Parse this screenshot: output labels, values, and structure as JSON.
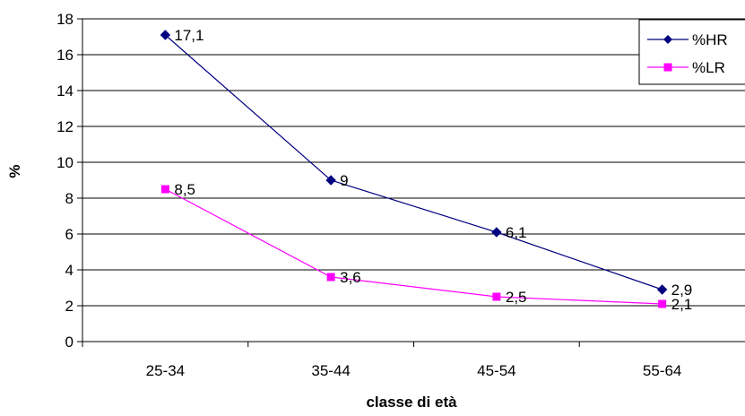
{
  "chart_data": {
    "type": "line",
    "title": "",
    "xlabel": "classe di età",
    "ylabel": "%",
    "categories": [
      "25-34",
      "35-44",
      "45-54",
      "55-64"
    ],
    "ylim": [
      0,
      18
    ],
    "y_ticks": [
      0,
      2,
      4,
      6,
      8,
      10,
      12,
      14,
      16,
      18
    ],
    "grid": true,
    "legend_position": "top-right",
    "series": [
      {
        "name": "%HR",
        "values": [
          17.1,
          9,
          6.1,
          2.9
        ],
        "labels": [
          "17,1",
          "9",
          "6,1",
          "2,9"
        ],
        "color": "#000080",
        "marker": "diamond"
      },
      {
        "name": "%LR",
        "values": [
          8.5,
          3.6,
          2.5,
          2.1
        ],
        "labels": [
          "8,5",
          "3,6",
          "2,5",
          "2,1"
        ],
        "color": "#FF00FF",
        "marker": "square"
      }
    ]
  }
}
